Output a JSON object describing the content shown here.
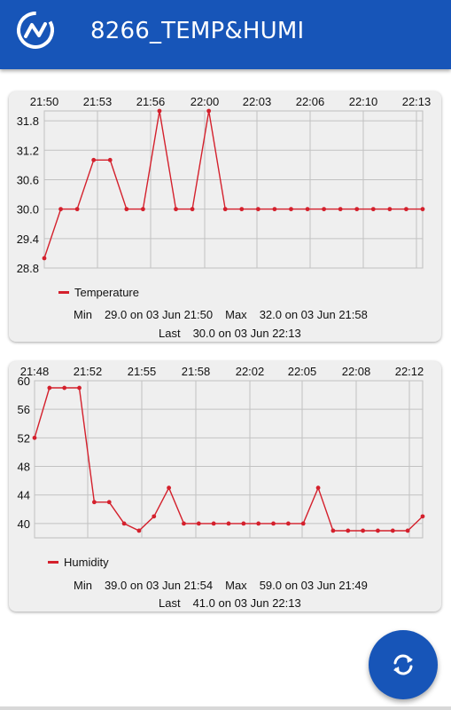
{
  "app": {
    "title": "8266_TEMP&HUMI",
    "logo_icon": "activity-circle-icon",
    "accent": "#1755b8"
  },
  "temperature": {
    "legend": "Temperature",
    "stats": {
      "min_label": "Min",
      "min_value": "29.0 on 03 Jun 21:50",
      "max_label": "Max",
      "max_value": "32.0 on 03 Jun 21:58",
      "last_label": "Last",
      "last_value": "30.0 on 03 Jun 22:13"
    }
  },
  "humidity": {
    "legend": "Humidity",
    "stats": {
      "min_label": "Min",
      "min_value": "39.0 on 03 Jun 21:54",
      "max_label": "Max",
      "max_value": "59.0 on 03 Jun 21:49",
      "last_label": "Last",
      "last_value": "41.0 on 03 Jun 22:13"
    }
  },
  "fab": {
    "icon": "sync-icon"
  },
  "chart_data": [
    {
      "type": "line",
      "x_tick_labels": [
        "21:50",
        "21:53",
        "21:56",
        "22:00",
        "22:03",
        "22:06",
        "22:10",
        "22:13"
      ],
      "y_tick_labels": [
        "28.8",
        "29.4",
        "30.0",
        "30.6",
        "31.2",
        "31.8"
      ],
      "y_ticks": [
        28.8,
        29.4,
        30.0,
        30.6,
        31.2,
        31.8
      ],
      "ylim": [
        28.8,
        32.0
      ],
      "grid": true,
      "legend": "bottom-left",
      "color": "#d4202c",
      "series": [
        {
          "name": "Temperature",
          "values": [
            29.0,
            30.0,
            30.0,
            31.0,
            31.0,
            30.0,
            30.0,
            32.0,
            30.0,
            30.0,
            32.0,
            30.0,
            30.0,
            30.0,
            30.0,
            30.0,
            30.0,
            30.0,
            30.0,
            30.0,
            30.0,
            30.0,
            30.0,
            30.0
          ]
        }
      ]
    },
    {
      "type": "line",
      "x_tick_labels": [
        "21:48",
        "21:52",
        "21:55",
        "21:58",
        "22:02",
        "22:05",
        "22:08",
        "22:12"
      ],
      "y_tick_labels": [
        "40",
        "44",
        "48",
        "52",
        "56",
        "60"
      ],
      "y_ticks": [
        40,
        44,
        48,
        52,
        56,
        60
      ],
      "ylim": [
        38.0,
        60.0
      ],
      "grid": true,
      "legend": "bottom-left",
      "color": "#d4202c",
      "series": [
        {
          "name": "Humidity",
          "values": [
            52.0,
            59.0,
            59.0,
            59.0,
            43.0,
            43.0,
            40.0,
            39.0,
            41.0,
            45.0,
            40.0,
            40.0,
            40.0,
            40.0,
            40.0,
            40.0,
            40.0,
            40.0,
            40.0,
            45.0,
            39.0,
            39.0,
            39.0,
            39.0,
            39.0,
            39.0,
            41.0
          ]
        }
      ]
    }
  ]
}
